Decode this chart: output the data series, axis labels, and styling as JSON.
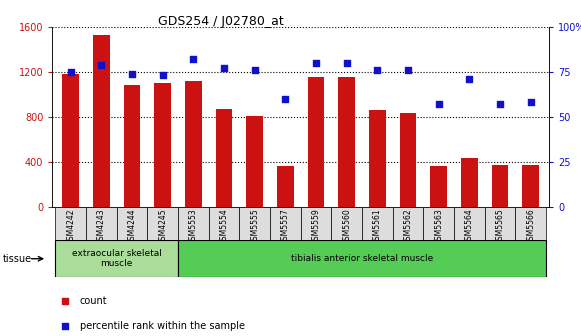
{
  "title": "GDS254 / J02780_at",
  "categories": [
    "GSM4242",
    "GSM4243",
    "GSM4244",
    "GSM4245",
    "GSM5553",
    "GSM5554",
    "GSM5555",
    "GSM5557",
    "GSM5559",
    "GSM5560",
    "GSM5561",
    "GSM5562",
    "GSM5563",
    "GSM5564",
    "GSM5565",
    "GSM5566"
  ],
  "counts": [
    1185,
    1530,
    1080,
    1100,
    1120,
    870,
    810,
    365,
    1155,
    1155,
    860,
    830,
    365,
    435,
    370,
    370
  ],
  "percentiles": [
    75,
    79,
    74,
    73,
    82,
    77,
    76,
    60,
    80,
    80,
    76,
    76,
    57,
    71,
    57,
    58
  ],
  "bar_color": "#cc1111",
  "scatter_color": "#1111cc",
  "left_ylim": [
    0,
    1600
  ],
  "left_yticks": [
    0,
    400,
    800,
    1200,
    1600
  ],
  "right_ylim": [
    0,
    100
  ],
  "right_yticks": [
    0,
    25,
    50,
    75,
    100
  ],
  "right_yticklabels": [
    "0",
    "25",
    "50",
    "75",
    "100%"
  ],
  "left_ycolor": "#cc1111",
  "right_ycolor": "#1111cc",
  "grid_linestyle": ":",
  "grid_linewidth": 0.8,
  "tissue_groups": [
    {
      "label": "extraocular skeletal\nmuscle",
      "start": 0,
      "end": 3,
      "color": "#aadd99"
    },
    {
      "label": "tibialis anterior skeletal muscle",
      "start": 4,
      "end": 15,
      "color": "#55cc55"
    }
  ],
  "tissue_label": "tissue",
  "legend_items": [
    {
      "label": "count",
      "color": "#cc1111"
    },
    {
      "label": "percentile rank within the sample",
      "color": "#1111cc"
    }
  ],
  "xtick_box_color": "#dddddd",
  "title_fontsize": 9
}
